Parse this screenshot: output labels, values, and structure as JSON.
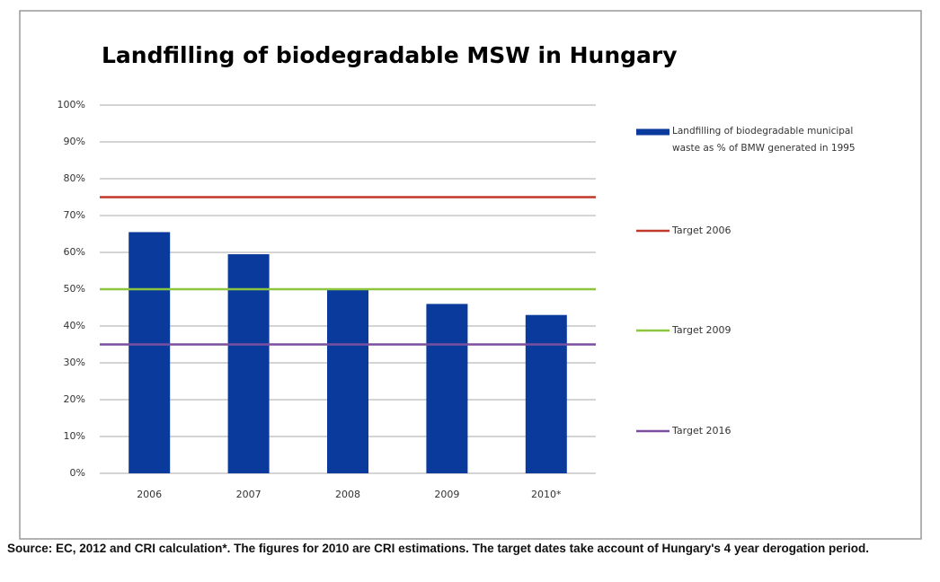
{
  "chart_data": {
    "type": "bar",
    "title": "Landfilling of biodegradable MSW in Hungary",
    "categories": [
      "2006",
      "2007",
      "2008",
      "2009",
      "2010*"
    ],
    "series": [
      {
        "name": "Landfilling of biodegradable municipal waste as % of BMW generated in 1995",
        "color": "#0a3a9c",
        "values": [
          65.5,
          59.5,
          50,
          46,
          43
        ]
      }
    ],
    "reference_lines": [
      {
        "name": "Target 2006",
        "color": "#c0392b",
        "value": 75
      },
      {
        "name": "Target 2009",
        "color": "#8cc63e",
        "value": 50
      },
      {
        "name": "Target 2016",
        "color": "#7a4fa0",
        "value": 35
      }
    ],
    "ylim": [
      0,
      100
    ],
    "yticks": [
      {
        "value": 0,
        "label": "0%"
      },
      {
        "value": 10,
        "label": "10%"
      },
      {
        "value": 20,
        "label": "20%"
      },
      {
        "value": 30,
        "label": "30%"
      },
      {
        "value": 40,
        "label": "40%"
      },
      {
        "value": 50,
        "label": "50%"
      },
      {
        "value": 60,
        "label": "60%"
      },
      {
        "value": 70,
        "label": "70%"
      },
      {
        "value": 80,
        "label": "80%"
      },
      {
        "value": 90,
        "label": "90%"
      },
      {
        "value": 100,
        "label": "100%"
      }
    ],
    "grid": true,
    "legend": "right",
    "source": "Source: EC, 2012 and CRI calculation*. The figures for 2010 are CRI estimations. The target dates take account of Hungary's 4 year derogation period."
  }
}
